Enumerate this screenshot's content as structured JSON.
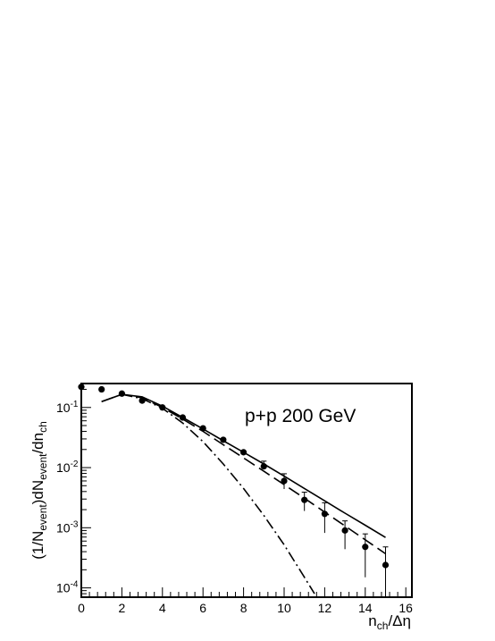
{
  "chart_data": {
    "type": "scatter",
    "title": "",
    "annotation": "p+p 200 GeV",
    "xlabel": {
      "main": "n",
      "sub": "ch",
      "rest": "/Δη"
    },
    "ylabel": {
      "parts": [
        {
          "t": "(1/N",
          "sub": false
        },
        {
          "t": "event",
          "sub": true
        },
        {
          "t": ")dN",
          "sub": false
        },
        {
          "t": "event",
          "sub": true
        },
        {
          "t": "/dn",
          "sub": false
        },
        {
          "t": "ch",
          "sub": true
        }
      ]
    },
    "xlim": [
      0,
      16.3
    ],
    "ylim": [
      7e-05,
      0.25
    ],
    "yscale": "log",
    "xticks": [
      0,
      2,
      4,
      6,
      8,
      10,
      12,
      14,
      16
    ],
    "xtick_labels": [
      "0",
      "2",
      "4",
      "6",
      "8",
      "10",
      "12",
      "14",
      "16"
    ],
    "yticks": [
      {
        "value": 0.1,
        "base": "10",
        "exp": "-1"
      },
      {
        "value": 0.01,
        "base": "10",
        "exp": "-2"
      },
      {
        "value": 0.001,
        "base": "10",
        "exp": "-3"
      },
      {
        "value": 0.0001,
        "base": "10",
        "exp": "-4"
      }
    ],
    "grid": false,
    "points": [
      {
        "x": 0,
        "y": 0.22
      },
      {
        "x": 1,
        "y": 0.2
      },
      {
        "x": 2,
        "y": 0.17
      },
      {
        "x": 3,
        "y": 0.13
      },
      {
        "x": 4,
        "y": 0.1
      },
      {
        "x": 5,
        "y": 0.068
      },
      {
        "x": 6,
        "y": 0.045
      },
      {
        "x": 7,
        "y": 0.029
      },
      {
        "x": 8,
        "y": 0.018
      },
      {
        "x": 9,
        "y": 0.0105,
        "err_low": 0.0095,
        "err_high": 0.0128
      },
      {
        "x": 10,
        "y": 0.006,
        "err_low": 0.0044,
        "err_high": 0.0079
      },
      {
        "x": 11,
        "y": 0.0029,
        "err_low": 0.0019,
        "err_high": 0.0039
      },
      {
        "x": 12,
        "y": 0.0017,
        "err_low": 0.00082,
        "err_high": 0.0026
      },
      {
        "x": 13,
        "y": 0.0009,
        "err_low": 0.00044,
        "err_high": 0.0013
      },
      {
        "x": 14,
        "y": 0.00048,
        "err_low": 0.00015,
        "err_high": 0.00079
      },
      {
        "x": 15,
        "y": 0.00024,
        "err_low": 7e-05,
        "err_high": 0.00048
      }
    ],
    "series": [
      {
        "style": "solid",
        "x": [
          1,
          2,
          3,
          4,
          5,
          6,
          7,
          8,
          9,
          10,
          11,
          12,
          13,
          14,
          15
        ],
        "y": [
          0.125,
          0.165,
          0.15,
          0.105,
          0.068,
          0.044,
          0.028,
          0.018,
          0.0115,
          0.0072,
          0.0045,
          0.0028,
          0.00175,
          0.0011,
          0.00069
        ]
      },
      {
        "style": "dashed",
        "x": [
          1,
          2,
          3,
          4,
          5,
          6,
          7,
          8,
          9,
          10,
          11,
          12,
          13,
          14,
          15
        ],
        "y": [
          0.125,
          0.165,
          0.145,
          0.1,
          0.064,
          0.04,
          0.024,
          0.0145,
          0.0087,
          0.0052,
          0.0031,
          0.00182,
          0.00107,
          0.00063,
          0.00037
        ]
      },
      {
        "style": "dashdot",
        "x": [
          2,
          3,
          4,
          5,
          6,
          7,
          8,
          9,
          10,
          11,
          11.5
        ],
        "y": [
          0.165,
          0.14,
          0.097,
          0.055,
          0.027,
          0.0115,
          0.0045,
          0.0016,
          0.00052,
          0.00015,
          8e-05
        ]
      }
    ]
  }
}
